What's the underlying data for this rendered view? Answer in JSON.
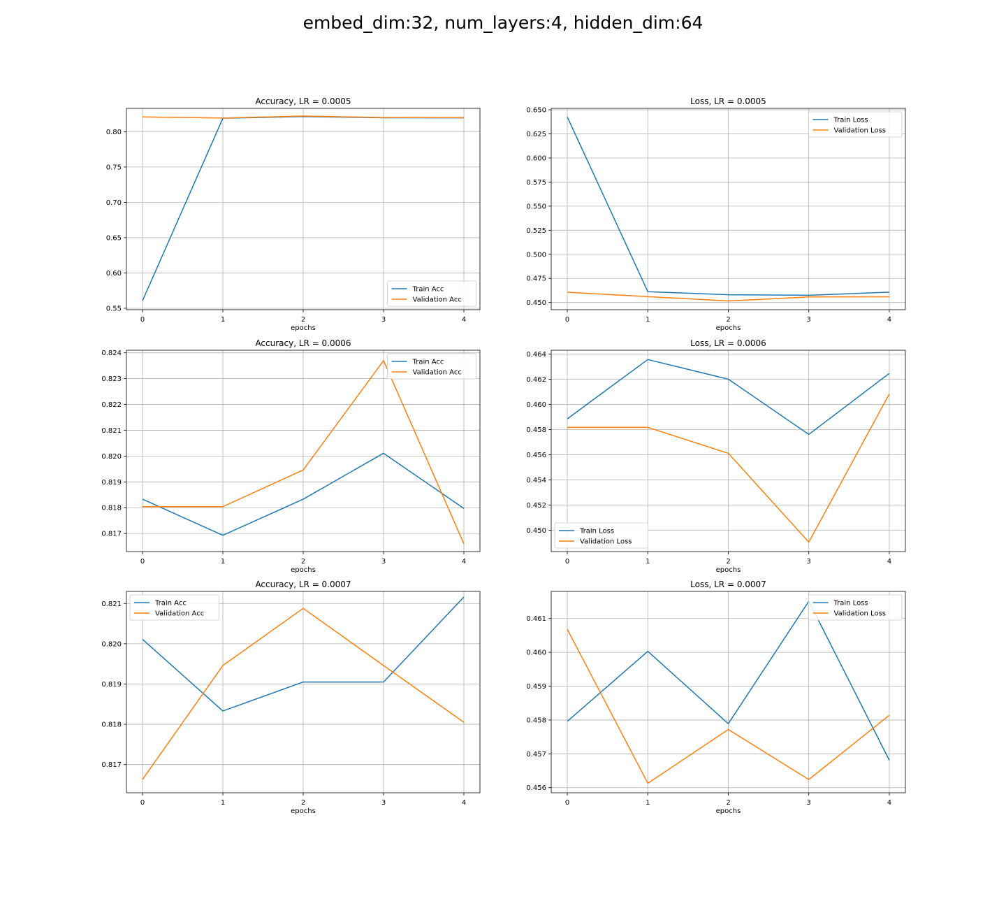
{
  "suptitle": "embed_dim:32, num_layers:4, hidden_dim:64",
  "colors": {
    "train": "#1f77b4",
    "validation": "#ff7f0e",
    "grid": "#b0b0b0"
  },
  "chart_data": [
    {
      "type": "line",
      "title": "Accuracy, LR = 0.0005",
      "xlabel": "epochs",
      "ylabel": "",
      "x": [
        0,
        1,
        2,
        3,
        4
      ],
      "ylim": [
        0.548,
        0.833
      ],
      "grid": true,
      "legend_loc": "lower-right",
      "yticks": [
        0.55,
        0.6,
        0.65,
        0.7,
        0.75,
        0.8
      ],
      "ytick_decimals": 2,
      "series": [
        {
          "name": "Train Acc",
          "values": [
            0.5607,
            0.819,
            0.8214,
            0.8196,
            0.8195
          ]
        },
        {
          "name": "Validation Acc",
          "values": [
            0.8209,
            0.8193,
            0.8221,
            0.82,
            0.8199
          ]
        }
      ]
    },
    {
      "type": "line",
      "title": "Loss, LR = 0.0005",
      "xlabel": "epochs",
      "ylabel": "",
      "x": [
        0,
        1,
        2,
        3,
        4
      ],
      "ylim": [
        0.4425,
        0.6515
      ],
      "grid": true,
      "legend_loc": "upper-right",
      "yticks": [
        0.45,
        0.475,
        0.5,
        0.525,
        0.55,
        0.575,
        0.6,
        0.625,
        0.65
      ],
      "ytick_decimals": 3,
      "series": [
        {
          "name": "Train Loss",
          "values": [
            0.6426,
            0.4612,
            0.458,
            0.4575,
            0.4607
          ]
        },
        {
          "name": "Validation Loss",
          "values": [
            0.4606,
            0.456,
            0.4516,
            0.4557,
            0.4559
          ]
        }
      ]
    },
    {
      "type": "line",
      "title": "Accuracy, LR = 0.0006",
      "xlabel": "epochs",
      "ylabel": "",
      "x": [
        0,
        1,
        2,
        3,
        4
      ],
      "ylim": [
        0.8163,
        0.8241
      ],
      "grid": true,
      "legend_loc": "upper-right",
      "yticks": [
        0.817,
        0.818,
        0.819,
        0.82,
        0.821,
        0.822,
        0.823,
        0.824
      ],
      "ytick_decimals": 3,
      "series": [
        {
          "name": "Train Acc",
          "values": [
            0.81833,
            0.81693,
            0.81833,
            0.82011,
            0.81797
          ]
        },
        {
          "name": "Validation Acc",
          "values": [
            0.81804,
            0.81804,
            0.81946,
            0.8237,
            0.8166
          ]
        }
      ]
    },
    {
      "type": "line",
      "title": "Loss, LR = 0.0006",
      "xlabel": "epochs",
      "ylabel": "",
      "x": [
        0,
        1,
        2,
        3,
        4
      ],
      "ylim": [
        0.4483,
        0.4643
      ],
      "grid": true,
      "legend_loc": "lower-left",
      "yticks": [
        0.45,
        0.452,
        0.454,
        0.456,
        0.458,
        0.46,
        0.462,
        0.464
      ],
      "ytick_decimals": 3,
      "series": [
        {
          "name": "Train Loss",
          "values": [
            0.45885,
            0.46356,
            0.462,
            0.45761,
            0.46246
          ]
        },
        {
          "name": "Validation Loss",
          "values": [
            0.45817,
            0.45817,
            0.45611,
            0.44905,
            0.46083
          ]
        }
      ]
    },
    {
      "type": "line",
      "title": "Accuracy, LR = 0.0007",
      "xlabel": "epochs",
      "ylabel": "",
      "x": [
        0,
        1,
        2,
        3,
        4
      ],
      "ylim": [
        0.8163,
        0.8213
      ],
      "grid": true,
      "legend_loc": "upper-left",
      "yticks": [
        0.817,
        0.818,
        0.819,
        0.82,
        0.821
      ],
      "ytick_decimals": 3,
      "series": [
        {
          "name": "Train Acc",
          "values": [
            0.82011,
            0.81833,
            0.81905,
            0.81905,
            0.82116
          ]
        },
        {
          "name": "Validation Acc",
          "values": [
            0.81663,
            0.81946,
            0.82088,
            0.81946,
            0.81805
          ]
        }
      ]
    },
    {
      "type": "line",
      "title": "Loss, LR = 0.0007",
      "xlabel": "epochs",
      "ylabel": "",
      "x": [
        0,
        1,
        2,
        3,
        4
      ],
      "ylim": [
        0.45585,
        0.4618
      ],
      "grid": true,
      "legend_loc": "upper-right",
      "yticks": [
        0.456,
        0.457,
        0.458,
        0.459,
        0.46,
        0.461
      ],
      "ytick_decimals": 3,
      "series": [
        {
          "name": "Train Loss",
          "values": [
            0.45796,
            0.46003,
            0.45789,
            0.46151,
            0.45681
          ]
        },
        {
          "name": "Validation Loss",
          "values": [
            0.46068,
            0.45613,
            0.45772,
            0.45624,
            0.45814
          ]
        }
      ]
    }
  ]
}
